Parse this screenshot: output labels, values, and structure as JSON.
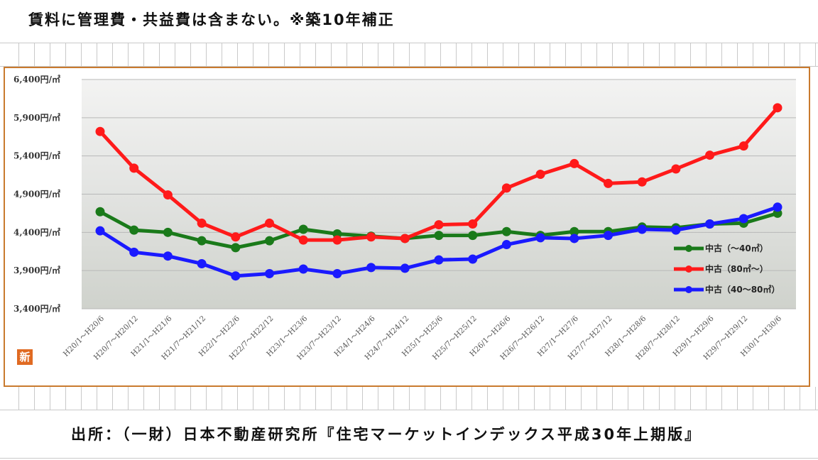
{
  "header": {
    "note": "賃料に管理費・共益費は含まない。※築10年補正"
  },
  "footer": {
    "source": "出所：（一財）日本不動産研究所『住宅マーケットインデックス平成30年上期版』"
  },
  "logo": {
    "text": "新",
    "color": "#e06a22"
  },
  "chart_data": {
    "type": "line",
    "title": "",
    "xlabel": "",
    "ylabel": "",
    "ylim": [
      3400,
      6400
    ],
    "yticks": [
      3400,
      3900,
      4400,
      4900,
      5400,
      5900,
      6400
    ],
    "ytick_labels": [
      "3,400円/㎡",
      "3,900円/㎡",
      "4,400円/㎡",
      "4,900円/㎡",
      "5,400円/㎡",
      "5,900円/㎡",
      "6,400円/㎡"
    ],
    "grid": true,
    "legend_position": "right",
    "categories": [
      "H20/1～H20/6",
      "H20/7～H20/12",
      "H21/1～H21/6",
      "H21/7～H21/12",
      "H22/1～H22/6",
      "H22/7～H22/12",
      "H23/1～H23/6",
      "H23/7～H23/12",
      "H24/1～H24/6",
      "H24/7～H24/12",
      "H25/1～H25/6",
      "H25/7～H25/12",
      "H26/1～H26/6",
      "H26/7～H26/12",
      "H27/1～H27/6",
      "H27/7～H27/12",
      "H28/1～H28/6",
      "H28/7～H28/12",
      "H29/1～H29/6",
      "H29/7～H29/12",
      "H30/1～H30/6"
    ],
    "series": [
      {
        "name": "中古（～40㎡）",
        "color": "#1a7a1a",
        "values": [
          4670,
          4430,
          4400,
          4290,
          4200,
          4290,
          4440,
          4380,
          4350,
          4320,
          4360,
          4360,
          4410,
          4360,
          4410,
          4410,
          4470,
          4460,
          4510,
          4520,
          4650
        ]
      },
      {
        "name": "中古（80㎡～）",
        "color": "#ff1a1a",
        "values": [
          5720,
          5240,
          4890,
          4520,
          4340,
          4520,
          4300,
          4300,
          4340,
          4320,
          4500,
          4510,
          4980,
          5160,
          5300,
          5040,
          5060,
          5230,
          5410,
          5530,
          6030
        ]
      },
      {
        "name": "中古（40～80㎡）",
        "color": "#1a1aff",
        "values": [
          4420,
          4140,
          4090,
          3990,
          3830,
          3860,
          3920,
          3860,
          3940,
          3930,
          4040,
          4050,
          4240,
          4330,
          4320,
          4360,
          4440,
          4430,
          4510,
          4580,
          4730
        ]
      }
    ]
  }
}
